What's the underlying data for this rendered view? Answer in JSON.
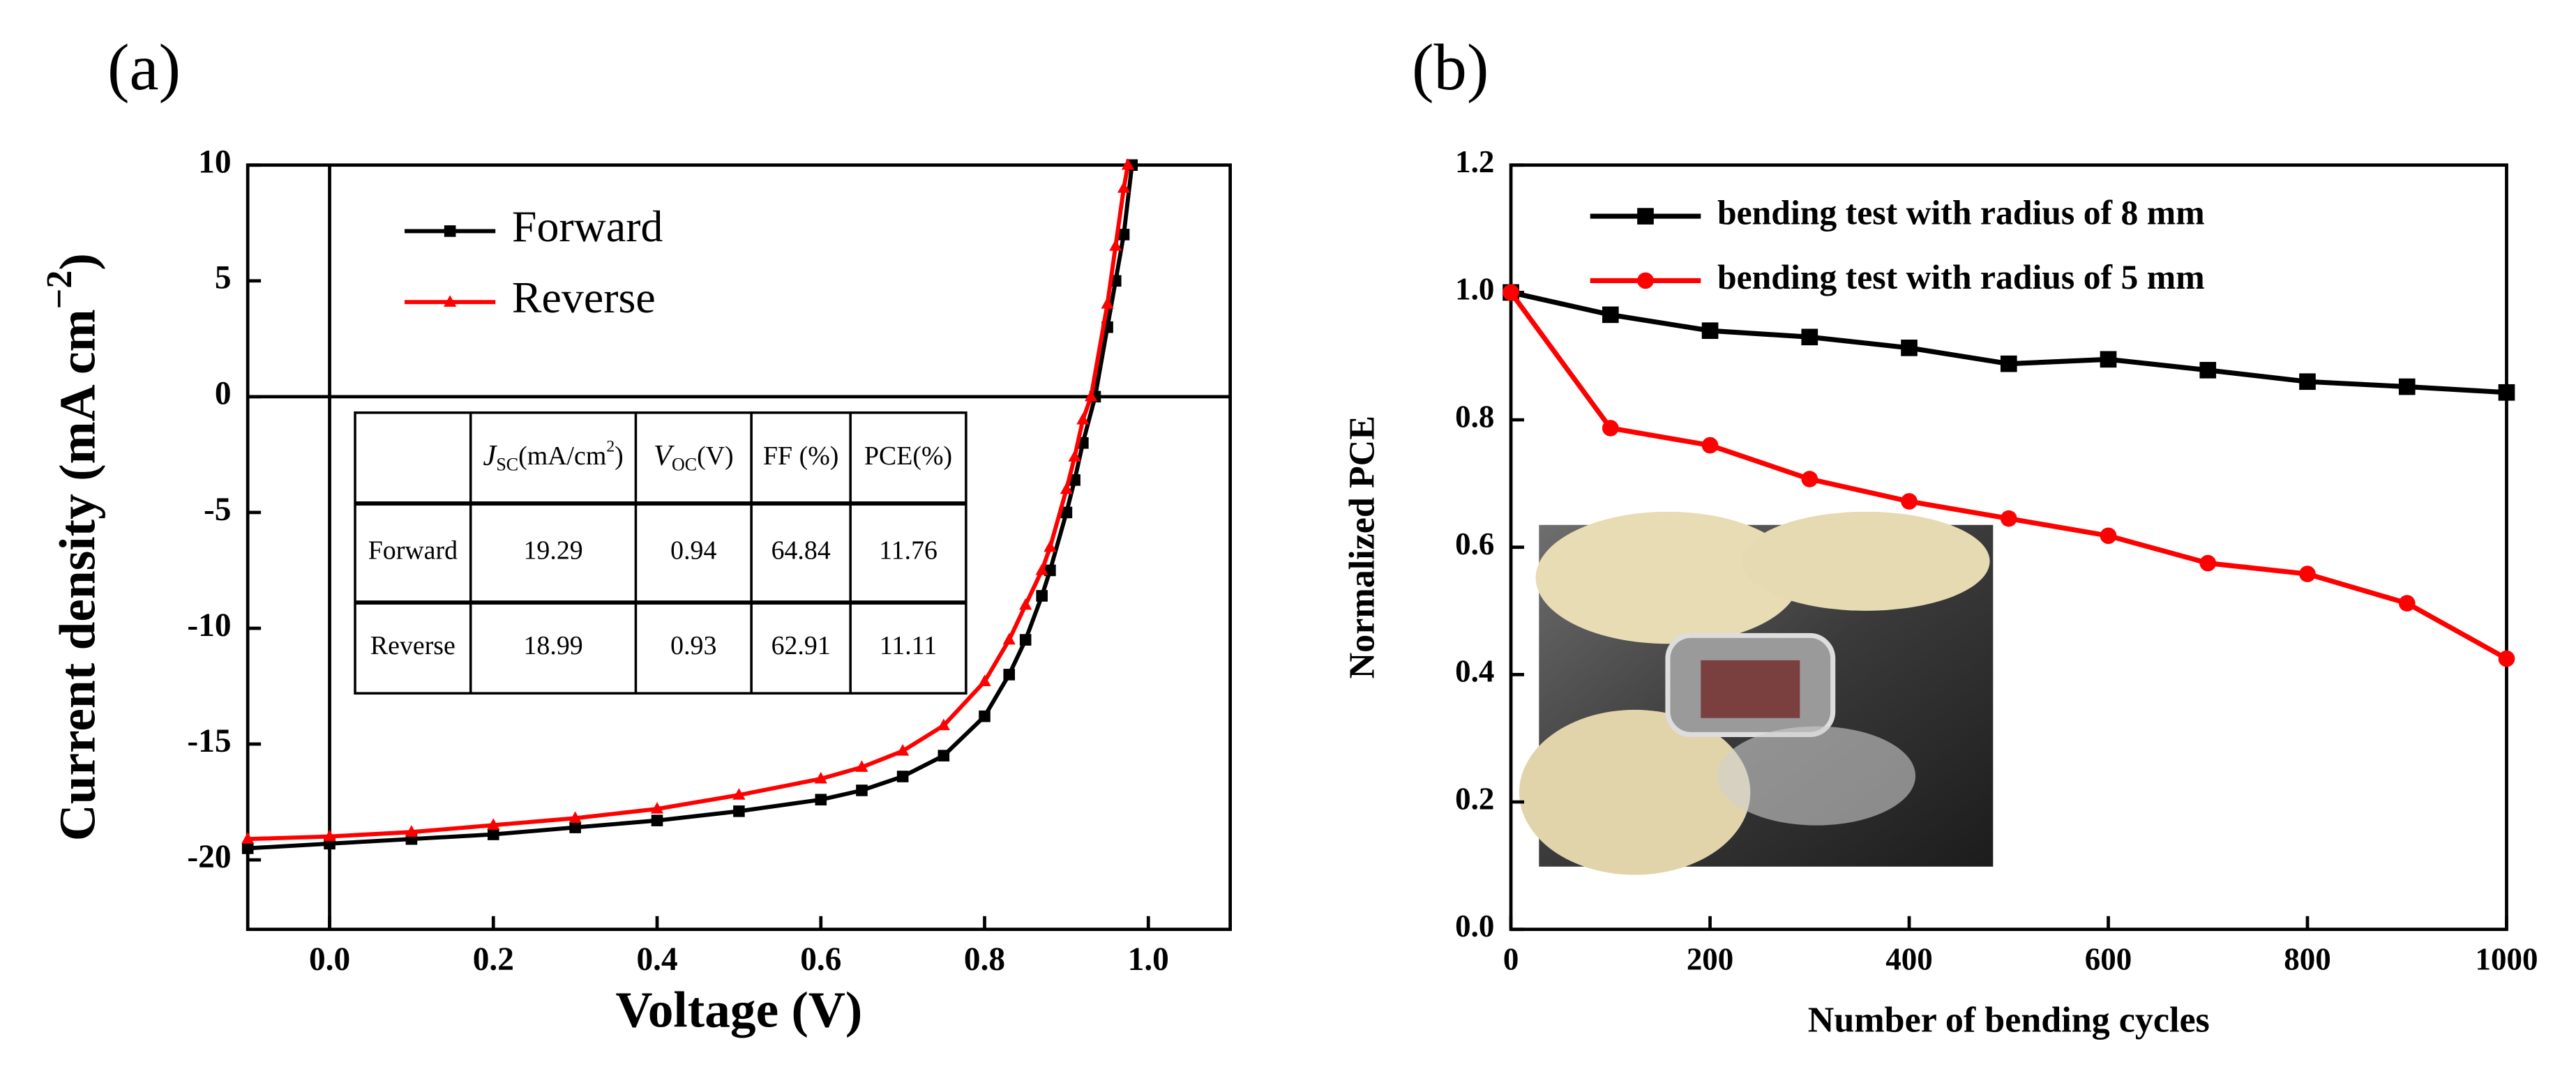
{
  "chart_data": [
    {
      "type": "line",
      "panel_label": "(a)",
      "xlabel": "Voltage (V)",
      "ylabel": "Current density (mA cm",
      "ylabel_sup": "−2",
      "ylabel_end": ")",
      "xlim": [
        -0.1,
        1.1
      ],
      "ylim": [
        -23,
        10
      ],
      "xticks": [
        {
          "value": 0,
          "label": "0.0"
        },
        0.2,
        0.4,
        0.6,
        0.8,
        {
          "value": 1,
          "label": "1.0"
        }
      ],
      "yticks": [
        10,
        5,
        0,
        -5,
        -10,
        -15,
        -20
      ],
      "legend": "upper left",
      "series": [
        {
          "name": "Forward",
          "color": "#000000",
          "marker": "square",
          "x": [
            -0.1,
            0,
            0.1,
            0.2,
            0.3,
            0.4,
            0.5,
            0.6,
            0.65,
            0.7,
            0.75,
            0.8,
            0.83,
            0.85,
            0.87,
            0.88,
            0.9,
            0.91,
            0.92,
            0.935,
            0.95,
            0.96,
            0.97,
            0.98
          ],
          "values": [
            -19.5,
            -19.3,
            -19.1,
            -18.9,
            -18.6,
            -18.3,
            -17.9,
            -17.4,
            -17.0,
            -16.4,
            -15.5,
            -13.8,
            -12.0,
            -10.5,
            -8.6,
            -7.5,
            -5.0,
            -3.6,
            -2.0,
            0,
            3.0,
            5.0,
            7.0,
            10.0
          ]
        },
        {
          "name": "Reverse",
          "color": "#ff0000",
          "marker": "triangle",
          "x": [
            -0.1,
            0,
            0.1,
            0.2,
            0.3,
            0.4,
            0.5,
            0.6,
            0.65,
            0.7,
            0.75,
            0.8,
            0.83,
            0.85,
            0.87,
            0.88,
            0.9,
            0.91,
            0.92,
            0.93,
            0.95,
            0.96,
            0.97,
            0.975
          ],
          "values": [
            -19.1,
            -18.99,
            -18.8,
            -18.5,
            -18.2,
            -17.8,
            -17.2,
            -16.5,
            -16.0,
            -15.3,
            -14.2,
            -12.3,
            -10.5,
            -9.0,
            -7.5,
            -6.5,
            -4.0,
            -2.6,
            -1.0,
            0,
            4.0,
            6.5,
            9.0,
            10.0
          ]
        }
      ],
      "table": {
        "columns": [
          {
            "main": "J",
            "sub": "SC",
            "rest": "(mA/cm",
            "sup": "2",
            "end": ")"
          },
          {
            "main": "V",
            "sub": "OC",
            "rest": "(V)"
          },
          {
            "rest": "FF (%)"
          },
          {
            "rest": "PCE(%)"
          }
        ],
        "rows": [
          [
            "Forward",
            19.29,
            0.94,
            64.84,
            11.76
          ],
          [
            "Reverse",
            18.99,
            0.93,
            62.91,
            11.11
          ]
        ]
      }
    },
    {
      "type": "line",
      "panel_label": "(b)",
      "xlabel": "Number of bending cycles",
      "ylabel": "Normalized PCE",
      "xlim": [
        0,
        1000
      ],
      "ylim": [
        0,
        1.2
      ],
      "xticks": [
        0,
        200,
        400,
        600,
        800,
        1000
      ],
      "yticks": [
        {
          "value": 0,
          "label": "0.0"
        },
        0.2,
        0.4,
        0.6,
        0.8,
        {
          "value": 1,
          "label": "1.0"
        },
        1.2
      ],
      "legend": "upper right",
      "series": [
        {
          "name": "bending test with radius of 8 mm",
          "color": "#000000",
          "marker": "square",
          "x": [
            0,
            100,
            200,
            300,
            400,
            500,
            600,
            700,
            800,
            900,
            1000
          ],
          "values": [
            1.0,
            0.965,
            0.94,
            0.93,
            0.913,
            0.888,
            0.895,
            0.878,
            0.86,
            0.852,
            0.843
          ]
        },
        {
          "name": "bending test with radius of 5 mm",
          "color": "#ff0000",
          "marker": "circle",
          "x": [
            0,
            100,
            200,
            300,
            400,
            500,
            600,
            700,
            800,
            900,
            1000
          ],
          "values": [
            1.0,
            0.787,
            0.76,
            0.707,
            0.672,
            0.645,
            0.618,
            0.575,
            0.558,
            0.512,
            0.425
          ]
        }
      ]
    }
  ]
}
